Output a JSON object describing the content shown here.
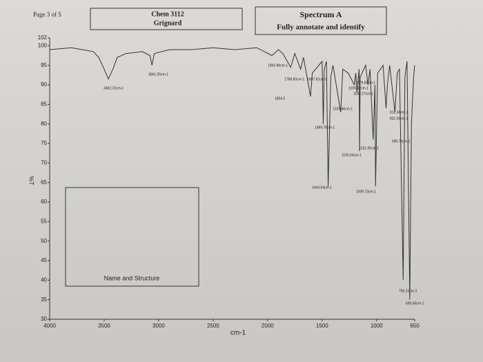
{
  "header": {
    "page": "Page 3 of 5",
    "course": "Chem 3112",
    "experiment": "Grignard",
    "spectrum": "Spectrum A",
    "instruction": "Fully annotate and identify"
  },
  "answer_box": {
    "label": "Name and Structure"
  },
  "chart_data": {
    "type": "line",
    "xlabel": "cm-1",
    "ylabel": "%T",
    "color": "#333333",
    "x": [
      4000,
      3800,
      3700,
      3600,
      3550,
      3500,
      3462,
      3420,
      3380,
      3300,
      3150,
      3080,
      3061,
      3040,
      2900,
      2700,
      2500,
      2300,
      2100,
      1960,
      1900,
      1860,
      1788,
      1750,
      1697,
      1670,
      1606,
      1590,
      1500,
      1489,
      1480,
      1460,
      1444,
      1420,
      1400,
      1329,
      1310,
      1260,
      1205,
      1190,
      1180,
      1160,
      1156,
      1150,
      1100,
      1079,
      1060,
      1031,
      1015,
      1009,
      990,
      940,
      913,
      900,
      880,
      831,
      810,
      790,
      756,
      740,
      720,
      695,
      680,
      660,
      650
    ],
    "values": [
      99,
      99.5,
      99,
      98.5,
      97,
      94,
      91.5,
      94,
      97,
      98,
      98.5,
      97.5,
      95,
      98,
      99,
      99,
      99.5,
      99,
      99.5,
      97.5,
      99,
      98,
      94.5,
      98,
      94,
      97,
      87,
      93,
      96,
      80,
      94,
      96,
      64,
      92,
      95,
      83,
      94,
      93,
      90,
      93,
      88,
      94,
      73,
      92,
      95,
      90,
      94,
      76,
      90,
      64,
      93,
      95,
      84,
      90,
      95,
      83,
      93,
      94,
      40,
      92,
      96,
      35,
      80,
      92,
      95
    ],
    "xlim": [
      4000,
      650
    ],
    "ylim": [
      30,
      102
    ],
    "xticks": [
      4000,
      3500,
      3000,
      2500,
      2000,
      1500,
      1000,
      650
    ],
    "yticks": [
      30,
      35,
      40,
      45,
      50,
      55,
      60,
      65,
      70,
      75,
      80,
      85,
      90,
      95,
      100,
      102
    ],
    "annotations": [
      "3462.23cm-1",
      "3061.55cm-1",
      "1960.98cm-1",
      "1788.60cm-1",
      "1697.62cm-1",
      "1804.5",
      "1329.46cm-1",
      "1489.78cm-1",
      "1444.54cm-1",
      "1205.52cm-1",
      "1180.27cm-1",
      "1079.81cm-1",
      "1156.54cm-1",
      "1031.00cm-1",
      "1009.73cm-1",
      "913.38cm-1",
      "831.55cm-1",
      "680.71cm-1",
      "756.21cm-1",
      "695.65cm-1"
    ]
  }
}
